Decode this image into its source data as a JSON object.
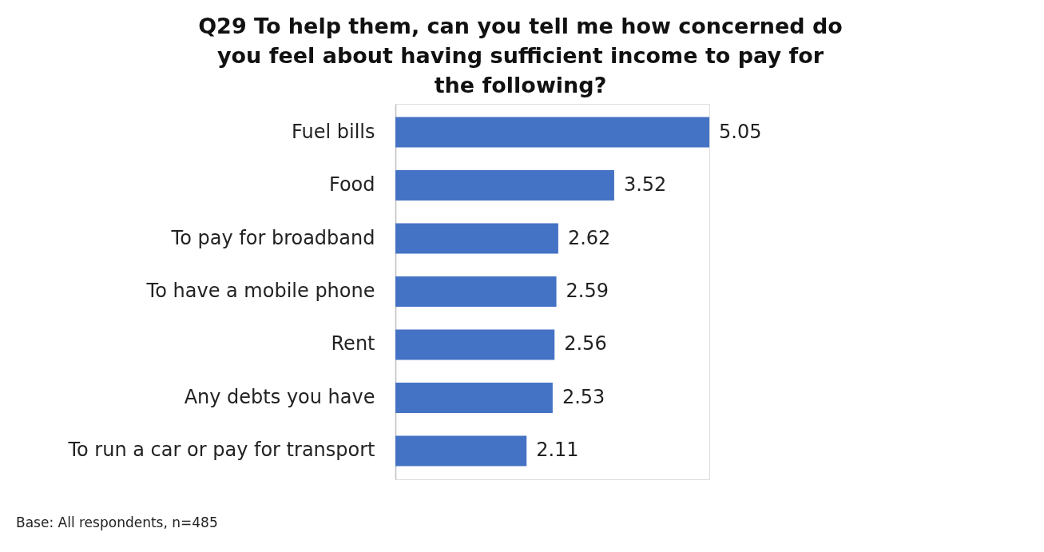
{
  "chart_data": {
    "type": "bar",
    "orientation": "horizontal",
    "title": "Q29 To help them, can you tell me how concerned do you feel about having sufficient income to pay for the following?",
    "categories": [
      "Fuel bills",
      "Food",
      "To pay for broadband",
      "To have a mobile phone",
      "Rent",
      "Any debts you have",
      "To run a car or pay for transport"
    ],
    "values": [
      5.05,
      3.52,
      2.62,
      2.59,
      2.56,
      2.53,
      2.11
    ],
    "color": "#4472c4",
    "data_labels": true,
    "annotations": [
      "Base: All respondents, n=485"
    ]
  }
}
